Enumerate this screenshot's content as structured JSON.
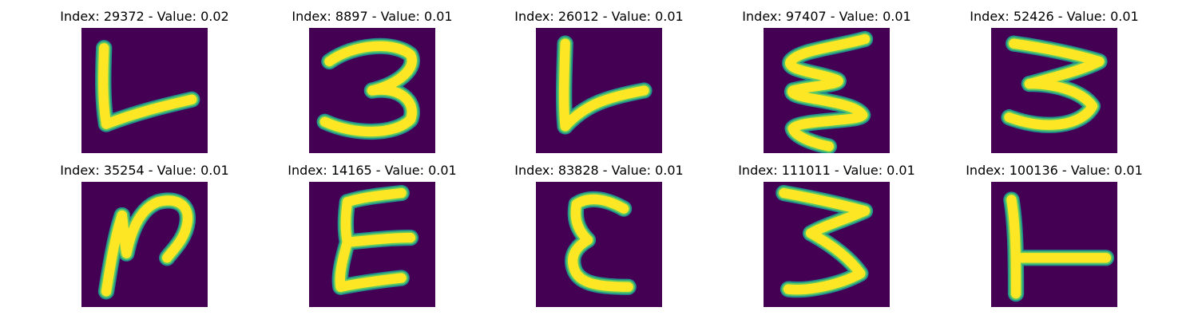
{
  "colors": {
    "background": "#440154",
    "stroke_edge": "#21918c",
    "stroke_mid": "#5ec962",
    "stroke_core": "#fde725"
  },
  "panels": [
    {
      "index": "29372",
      "value": "0.02",
      "title": "Index: 29372 - Value: 0.02",
      "glyph": "L-shape"
    },
    {
      "index": "8897",
      "value": "0.01",
      "title": "Index: 8897 - Value: 0.01",
      "glyph": "3-shape"
    },
    {
      "index": "26012",
      "value": "0.01",
      "title": "Index: 26012 - Value: 0.01",
      "glyph": "L-shape"
    },
    {
      "index": "97407",
      "value": "0.01",
      "title": "Index: 97407 - Value: 0.01",
      "glyph": "zigzag-E-shape"
    },
    {
      "index": "52426",
      "value": "0.01",
      "title": "Index: 52426 - Value: 0.01",
      "glyph": "3-shape"
    },
    {
      "index": "35254",
      "value": "0.01",
      "title": "Index: 35254 - Value: 0.01",
      "glyph": "N-shape"
    },
    {
      "index": "14165",
      "value": "0.01",
      "title": "Index: 14165 - Value: 0.01",
      "glyph": "E-shape"
    },
    {
      "index": "83828",
      "value": "0.01",
      "title": "Index: 83828 - Value: 0.01",
      "glyph": "epsilon-shape"
    },
    {
      "index": "111011",
      "value": "0.01",
      "title": "Index: 111011 - Value: 0.01",
      "glyph": "3-shape"
    },
    {
      "index": "100136",
      "value": "0.01",
      "title": "Index: 100136 - Value: 0.01",
      "glyph": "T-rotated-shape"
    }
  ]
}
